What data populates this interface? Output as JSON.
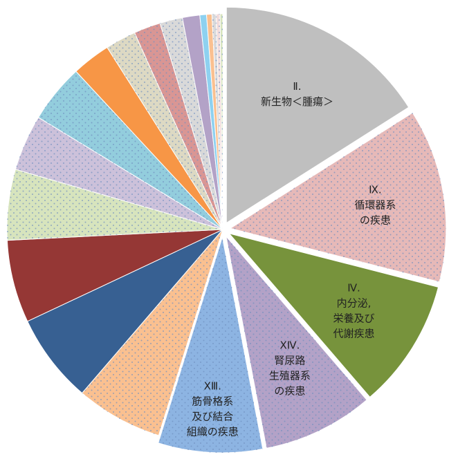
{
  "chart_data": {
    "type": "pie",
    "categories": [
      [
        "Ⅱ.",
        "新生物＜腫瘍＞"
      ],
      [
        "Ⅸ.",
        "循環器系",
        "の疾患"
      ],
      [
        "Ⅳ.",
        "内分泌,",
        "栄養及び",
        "代謝疾患"
      ],
      [
        "ⅩⅣ.",
        "腎尿路",
        "生殖器系",
        "の疾患"
      ],
      [
        "ⅩⅢ.",
        "筋骨格系",
        "及び結合",
        "組織の疾患"
      ],
      null,
      null,
      null,
      null,
      null,
      null,
      null,
      null,
      null,
      null,
      null,
      null,
      null,
      null,
      null,
      null
    ],
    "values": [
      16,
      13,
      9.7,
      8.3,
      7.8,
      6.5,
      6.7,
      6.2,
      5.3,
      4.2,
      4.4,
      2.9,
      2.3,
      2,
      1.7,
      1.3,
      0.5,
      0.4,
      0.3,
      0.3,
      0.2
    ],
    "colors": [
      "#bfbfbf",
      "#e6b9b8",
      "#77933c",
      "#b3a2c7",
      "#8db4e2",
      "#fac090",
      "#376092",
      "#953735",
      "#d7e4bd",
      "#ccc1da",
      "#93cddd",
      "#f79646",
      "#ddd9c3",
      "#d99694",
      "#d9d9d9",
      "#b3a2c7",
      "#8ed1f0",
      "#fac090",
      "#d9d9d9",
      "#f2dcdb",
      "#d7e4bd"
    ],
    "dotted": [
      false,
      true,
      false,
      true,
      true,
      true,
      false,
      false,
      true,
      true,
      true,
      false,
      true,
      true,
      true,
      false,
      false,
      false,
      true,
      true,
      true
    ],
    "exploded": [
      true,
      true,
      true,
      true,
      true,
      false,
      false,
      false,
      false,
      false,
      false,
      false,
      false,
      false,
      false,
      false,
      false,
      false,
      false,
      false,
      false
    ]
  }
}
